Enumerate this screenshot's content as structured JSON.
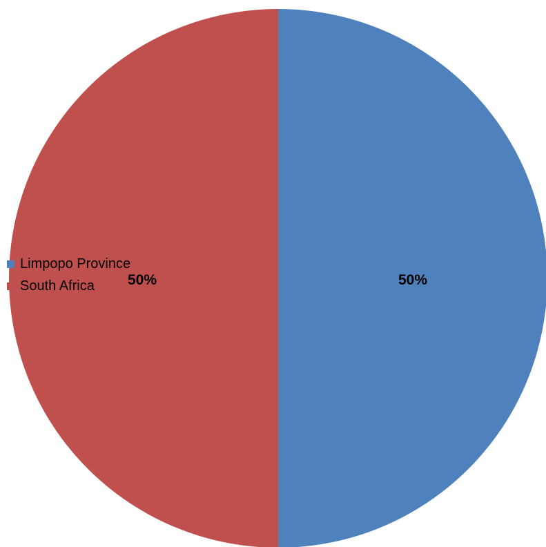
{
  "chart_data": {
    "type": "pie",
    "categories": [
      "Limpopo Province",
      "South Africa"
    ],
    "values": [
      50,
      50
    ],
    "data_labels": [
      "50%",
      "50%"
    ],
    "colors": [
      "#4f81bd",
      "#c0504d"
    ],
    "legend_position": "left",
    "title": "",
    "start_angle": "top, clockwise"
  }
}
